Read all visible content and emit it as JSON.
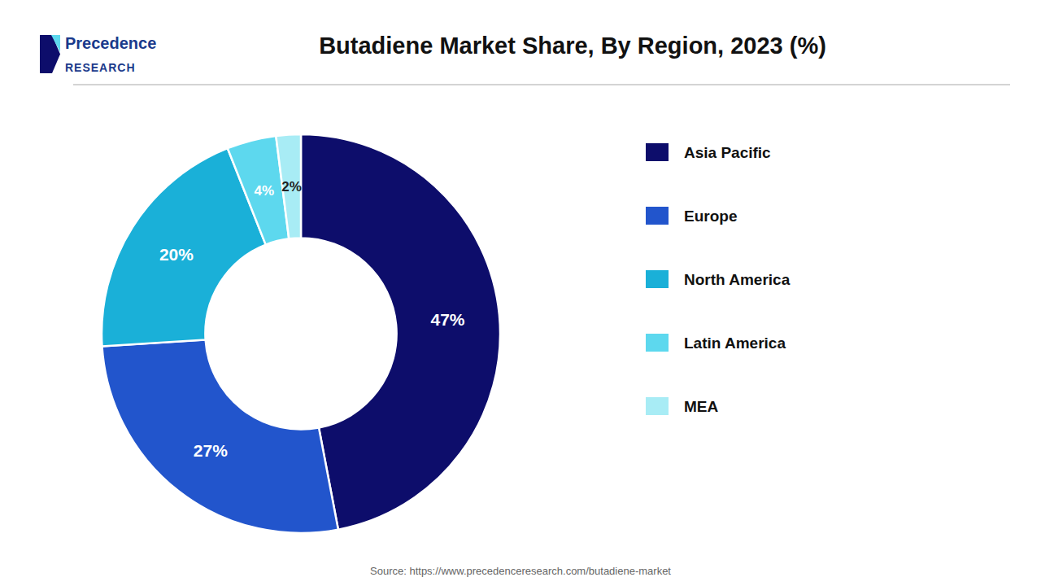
{
  "chart_data": {
    "type": "donut",
    "title": "Butadiene Market Share, By Region, 2023 (%)",
    "categories": [
      "Asia Pacific",
      "Europe",
      "North America",
      "Latin America",
      "MEA"
    ],
    "values": [
      47,
      27,
      20,
      4,
      2
    ],
    "value_labels": [
      "47%",
      "27%",
      "20%",
      "4%",
      "2%"
    ],
    "colors": [
      "#0d0d6b",
      "#2255cc",
      "#1ab0d8",
      "#5dd8ee",
      "#a8ecf5"
    ],
    "data_labels": true,
    "legend": "right",
    "annotations": [
      "Precedence",
      "RESEARCH",
      "Source: https://www.precedenceresearch.com/butadiene-market"
    ]
  }
}
